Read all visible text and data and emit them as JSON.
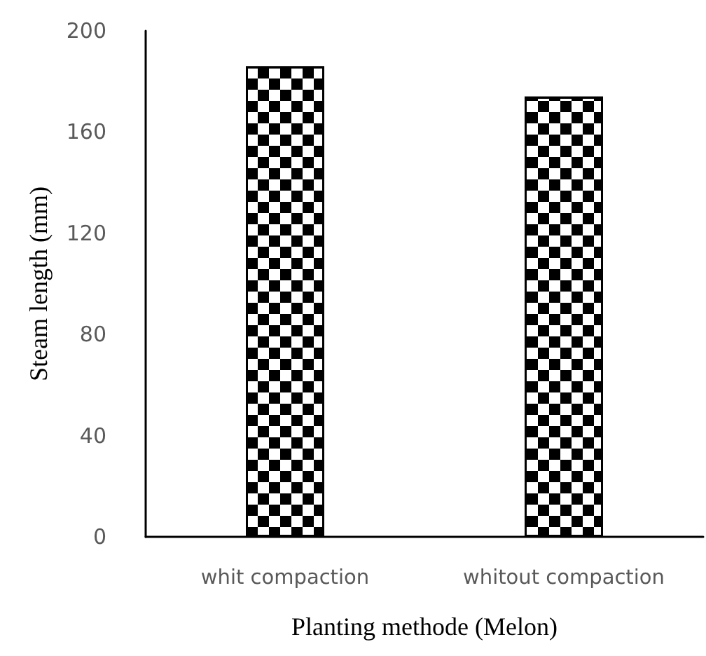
{
  "chart_data": {
    "type": "bar",
    "xlabel": "Planting methode (Melon)",
    "ylabel": "Steam length (mm)",
    "categories": [
      "whit compaction",
      "whitout compaction"
    ],
    "values": [
      186,
      174
    ],
    "color": "#000000",
    "ylim": [
      0,
      200
    ],
    "yticks": [
      0,
      40,
      80,
      120,
      160,
      200
    ],
    "grid": false
  }
}
